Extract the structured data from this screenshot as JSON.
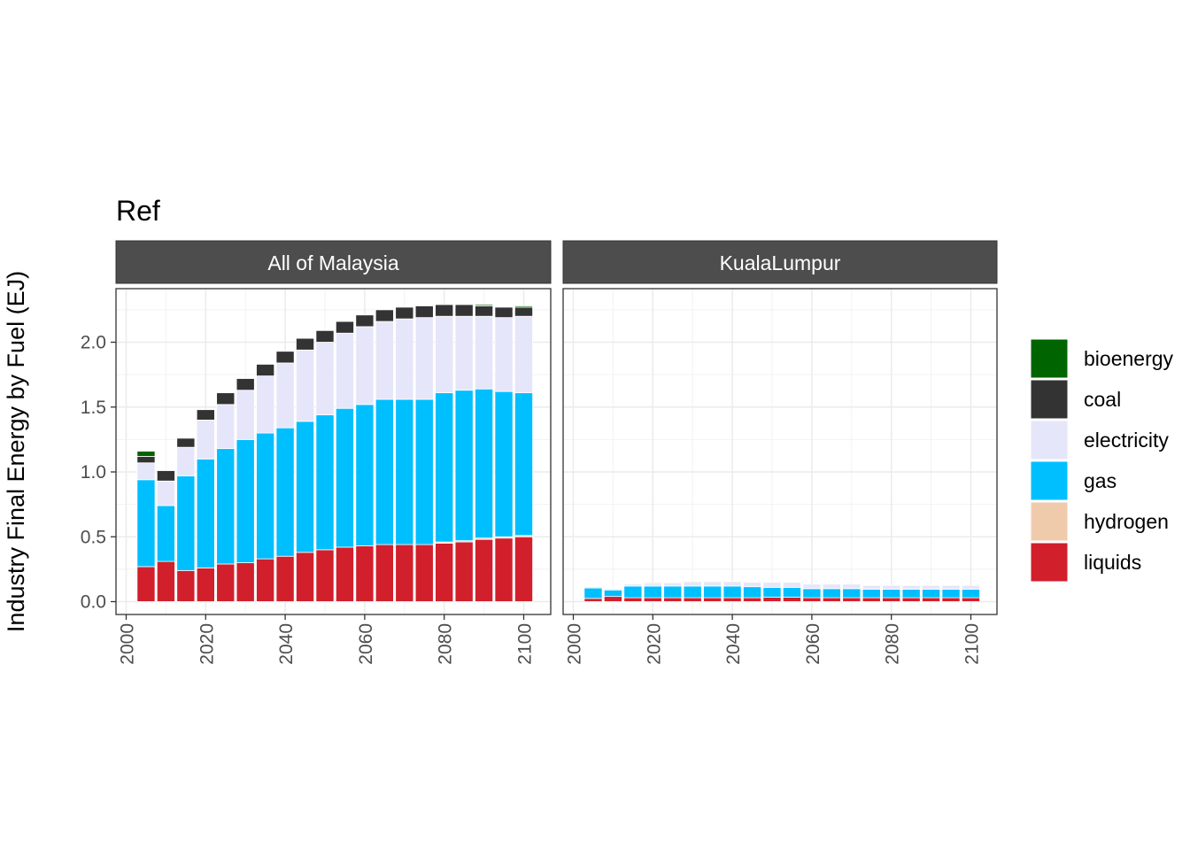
{
  "chart_data": {
    "type": "bar",
    "stacked": true,
    "title": "Ref",
    "ylabel": "Industry Final Energy by Fuel (EJ)",
    "xlabel": "",
    "xlim": [
      2005,
      2100
    ],
    "ylim": [
      -0.05,
      2.4
    ],
    "x_ticks": [
      2000,
      2020,
      2040,
      2060,
      2080,
      2100
    ],
    "y_ticks": [
      0.0,
      0.5,
      1.0,
      1.5,
      2.0
    ],
    "y_tick_labels": [
      "0.0",
      "0.5",
      "1.0",
      "1.5",
      "2.0"
    ],
    "grid": true,
    "legend_position": "right",
    "x": [
      2005,
      2010,
      2015,
      2020,
      2025,
      2030,
      2035,
      2040,
      2045,
      2050,
      2055,
      2060,
      2065,
      2070,
      2075,
      2080,
      2085,
      2090,
      2095,
      2100
    ],
    "fuels": [
      {
        "name": "bioenergy",
        "color": "#006400"
      },
      {
        "name": "coal",
        "color": "#333333"
      },
      {
        "name": "electricity",
        "color": "#e6e6fa"
      },
      {
        "name": "gas",
        "color": "#00bfff"
      },
      {
        "name": "hydrogen",
        "color": "#efcbac"
      },
      {
        "name": "liquids",
        "color": "#d11f2c"
      }
    ],
    "panels": [
      {
        "label": "All of Malaysia",
        "series": [
          {
            "name": "liquids",
            "values": [
              0.27,
              0.31,
              0.24,
              0.26,
              0.29,
              0.3,
              0.33,
              0.35,
              0.38,
              0.4,
              0.42,
              0.43,
              0.44,
              0.44,
              0.44,
              0.45,
              0.46,
              0.48,
              0.49,
              0.5
            ]
          },
          {
            "name": "hydrogen",
            "values": [
              0.0,
              0.0,
              0.0,
              0.0,
              0.0,
              0.0,
              0.0,
              0.0,
              0.0,
              0.0,
              0.0,
              0.0,
              0.0,
              0.0,
              0.0,
              0.01,
              0.01,
              0.01,
              0.01,
              0.01
            ]
          },
          {
            "name": "gas",
            "values": [
              0.67,
              0.43,
              0.73,
              0.84,
              0.89,
              0.95,
              0.97,
              0.99,
              1.01,
              1.04,
              1.07,
              1.09,
              1.12,
              1.12,
              1.12,
              1.15,
              1.16,
              1.15,
              1.12,
              1.1
            ]
          },
          {
            "name": "electricity",
            "values": [
              0.13,
              0.19,
              0.22,
              0.3,
              0.34,
              0.38,
              0.44,
              0.5,
              0.55,
              0.56,
              0.58,
              0.6,
              0.6,
              0.62,
              0.63,
              0.59,
              0.57,
              0.56,
              0.57,
              0.59
            ]
          },
          {
            "name": "coal",
            "values": [
              0.05,
              0.08,
              0.07,
              0.08,
              0.09,
              0.09,
              0.09,
              0.09,
              0.09,
              0.09,
              0.09,
              0.09,
              0.09,
              0.09,
              0.09,
              0.09,
              0.09,
              0.08,
              0.08,
              0.07
            ]
          },
          {
            "name": "bioenergy",
            "values": [
              0.04,
              0.0,
              0.0,
              0.0,
              0.0,
              0.0,
              0.0,
              0.0,
              0.0,
              0.0,
              0.0,
              0.0,
              0.0,
              0.0,
              0.0,
              0.0,
              0.0,
              0.01,
              0.0,
              0.01
            ]
          }
        ]
      },
      {
        "label": "KualaLumpur",
        "series": [
          {
            "name": "liquids",
            "values": [
              0.025,
              0.04,
              0.03,
              0.03,
              0.03,
              0.03,
              0.03,
              0.03,
              0.03,
              0.035,
              0.035,
              0.03,
              0.03,
              0.03,
              0.03,
              0.03,
              0.03,
              0.03,
              0.03,
              0.03
            ]
          },
          {
            "name": "hydrogen",
            "values": [
              0,
              0,
              0,
              0,
              0,
              0,
              0,
              0,
              0,
              0,
              0,
              0,
              0,
              0,
              0,
              0,
              0,
              0,
              0,
              0
            ]
          },
          {
            "name": "gas",
            "values": [
              0.08,
              0.05,
              0.09,
              0.09,
              0.09,
              0.09,
              0.09,
              0.09,
              0.085,
              0.075,
              0.075,
              0.07,
              0.07,
              0.07,
              0.065,
              0.065,
              0.065,
              0.065,
              0.065,
              0.065
            ]
          },
          {
            "name": "electricity",
            "values": [
              0.01,
              0.01,
              0.015,
              0.02,
              0.025,
              0.03,
              0.03,
              0.03,
              0.035,
              0.04,
              0.04,
              0.035,
              0.035,
              0.035,
              0.03,
              0.03,
              0.03,
              0.03,
              0.03,
              0.03
            ]
          },
          {
            "name": "coal",
            "values": [
              0.005,
              0.0,
              0.0,
              0.006,
              0.0,
              0.006,
              0.006,
              0.006,
              0.0,
              0.0,
              0.0,
              0.0,
              0.0,
              0.0,
              0.0,
              0.0,
              0.0,
              0.0,
              0.0,
              0.0
            ]
          },
          {
            "name": "bioenergy",
            "values": [
              0,
              0,
              0,
              0,
              0,
              0,
              0,
              0,
              0,
              0,
              0,
              0,
              0,
              0,
              0,
              0,
              0,
              0,
              0,
              0
            ]
          }
        ]
      }
    ]
  }
}
